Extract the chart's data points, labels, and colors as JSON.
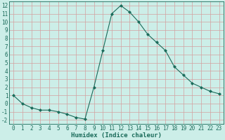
{
  "x": [
    0,
    1,
    2,
    3,
    4,
    5,
    6,
    7,
    8,
    9,
    10,
    11,
    12,
    13,
    14,
    15,
    16,
    17,
    18,
    19,
    20,
    21,
    22,
    23
  ],
  "y": [
    1,
    0,
    -0.5,
    -0.8,
    -0.8,
    -1.0,
    -1.3,
    -1.7,
    -1.9,
    2.0,
    6.5,
    11.0,
    12.0,
    11.2,
    10.0,
    8.5,
    7.5,
    6.5,
    4.5,
    3.5,
    2.5,
    2.0,
    1.5,
    1.2
  ],
  "line_color": "#1a6b5a",
  "marker": "D",
  "marker_size": 2,
  "bg_color": "#cceee8",
  "grid_color_major": "#d4a0a0",
  "grid_color_minor": "#b8d8d4",
  "xlabel": "Humidex (Indice chaleur)",
  "xlim": [
    -0.5,
    23.5
  ],
  "ylim": [
    -2.5,
    12.5
  ],
  "yticks": [
    -2,
    -1,
    0,
    1,
    2,
    3,
    4,
    5,
    6,
    7,
    8,
    9,
    10,
    11,
    12
  ],
  "xticks": [
    0,
    1,
    2,
    3,
    4,
    5,
    6,
    7,
    8,
    9,
    10,
    11,
    12,
    13,
    14,
    15,
    16,
    17,
    18,
    19,
    20,
    21,
    22,
    23
  ],
  "tick_fontsize": 5.5,
  "label_fontsize": 6.5,
  "text_color": "#1a6b5a"
}
